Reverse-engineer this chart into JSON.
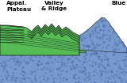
{
  "title_left": "Appal.\nPlateau",
  "title_center": "Valley\n& Ridge",
  "title_right": "Blue",
  "bg_color": "#ffffff",
  "blue_color": "#7799cc",
  "blue_dark": "#4466aa",
  "green_light": "#88dd88",
  "green_mid": "#55bb55",
  "green_dark": "#339933",
  "pink_color": "#cc99bb",
  "line_color": "#111111",
  "figsize": [
    1.6,
    1.05
  ],
  "dpi": 100
}
